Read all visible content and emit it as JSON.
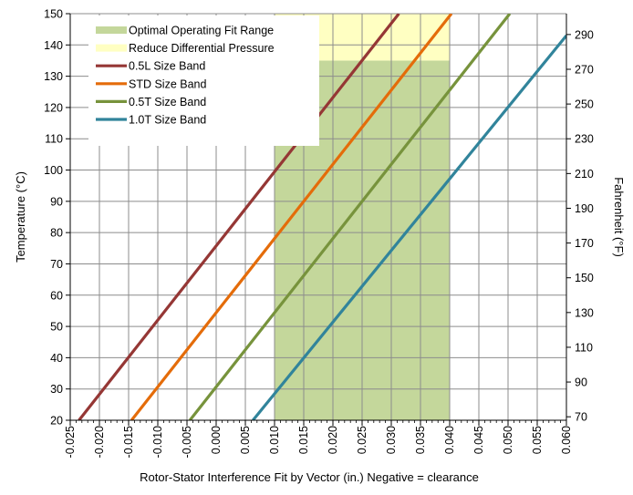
{
  "chart_data": {
    "type": "line",
    "xlabel": "Rotor-Stator Interference Fit by Vector (in.) Negative = clearance",
    "ylabel": "Temperature (°C)",
    "y2label": "Fahrenheit (°F)",
    "xlim": [
      -0.025,
      0.06
    ],
    "ylim": [
      20,
      150
    ],
    "x_ticks": [
      "-0.025",
      "-0.020",
      "-0.015",
      "-0.010",
      "-0.005",
      "0.000",
      "0.005",
      "0.010",
      "0.015",
      "0.020",
      "0.025",
      "0.030",
      "0.035",
      "0.040",
      "0.045",
      "0.050",
      "0.055",
      "0.060"
    ],
    "x_tick_values": [
      -0.025,
      -0.02,
      -0.015,
      -0.01,
      -0.005,
      0,
      0.005,
      0.01,
      0.015,
      0.02,
      0.025,
      0.03,
      0.035,
      0.04,
      0.045,
      0.05,
      0.055,
      0.06
    ],
    "y_ticks": [
      "20",
      "30",
      "40",
      "50",
      "60",
      "70",
      "80",
      "90",
      "100",
      "110",
      "120",
      "130",
      "140",
      "150"
    ],
    "y_tick_values": [
      20,
      30,
      40,
      50,
      60,
      70,
      80,
      90,
      100,
      110,
      120,
      130,
      140,
      150
    ],
    "y2_ticks": [
      "70",
      "90",
      "110",
      "130",
      "150",
      "170",
      "190",
      "210",
      "230",
      "250",
      "270",
      "290"
    ],
    "y2_tick_values": [
      70,
      90,
      110,
      130,
      150,
      170,
      190,
      210,
      230,
      250,
      270,
      290
    ],
    "grid": true,
    "legend_position": "top-left",
    "bands": [
      {
        "name": "Optimal Operating Fit Range",
        "color": "#c4d79b",
        "x0": 0.01,
        "x1": 0.04,
        "y0": 20,
        "y1": 135
      },
      {
        "name": "Reduce Differential Pressure",
        "color": "#ffffc2",
        "x0": 0.01,
        "x1": 0.04,
        "y0": 135,
        "y1": 150
      }
    ],
    "series": [
      {
        "name": "0.5L Size Band",
        "color": "#953735",
        "x": [
          -0.0235,
          0.0313
        ],
        "y": [
          20,
          150
        ]
      },
      {
        "name": "STD Size Band",
        "color": "#e46c0a",
        "x": [
          -0.0145,
          0.0403
        ],
        "y": [
          20,
          150
        ]
      },
      {
        "name": "0.5T Size Band",
        "color": "#77933c",
        "x": [
          -0.0045,
          0.0503
        ],
        "y": [
          20,
          150
        ]
      },
      {
        "name": "1.0T Size Band",
        "color": "#31849b",
        "x": [
          0.0063,
          0.06
        ],
        "y": [
          20,
          143
        ]
      }
    ]
  }
}
